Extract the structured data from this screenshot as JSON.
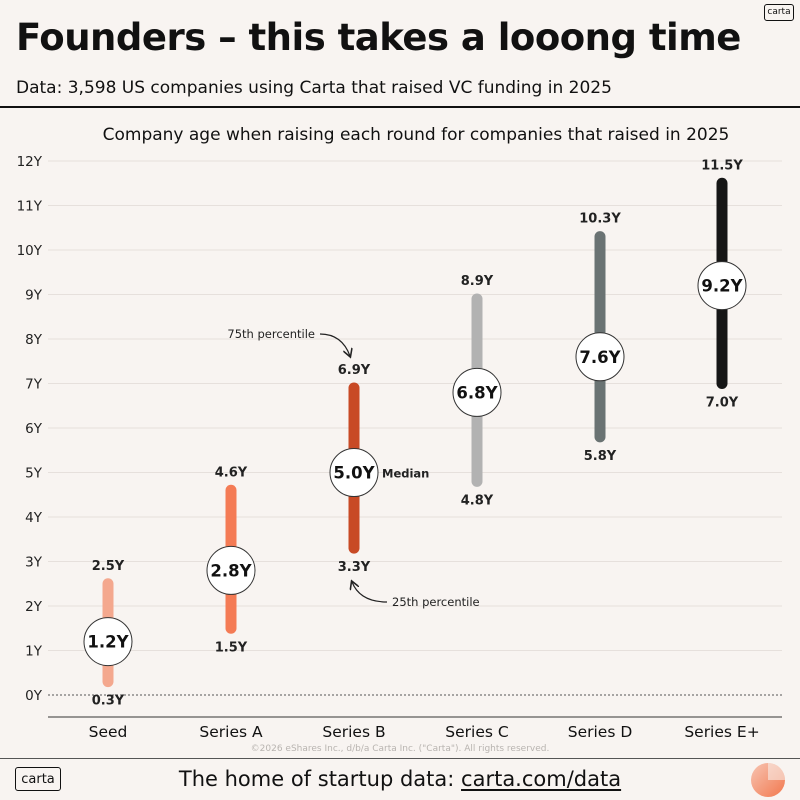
{
  "header": {
    "logo": "carta",
    "title": "Founders – this takes a looong time",
    "subtitle": "Data: 3,598 US companies using Carta that raised VC funding in 2025"
  },
  "footer": {
    "logo": "carta",
    "text_prefix": "The home of startup data: ",
    "link": "carta.com/data",
    "copyright": "©2026 eShares Inc., d/b/a Carta Inc. (\"Carta\"). All rights reserved."
  },
  "colors": {
    "Seed": "#f4a88e",
    "Series A": "#f47b55",
    "Series B": "#c84a25",
    "Series C": "#b2b2b2",
    "Series D": "#6a7373",
    "Series E+": "#161616",
    "background": "#f8f4f1"
  },
  "chart_data": {
    "type": "range",
    "title": "Company age when raising each round for companies that raised in 2025",
    "ylim": [
      0,
      12
    ],
    "yticks": [
      "0Y",
      "1Y",
      "2Y",
      "3Y",
      "4Y",
      "5Y",
      "6Y",
      "7Y",
      "8Y",
      "9Y",
      "10Y",
      "11Y",
      "12Y"
    ],
    "grid": true,
    "categories": [
      "Seed",
      "Series A",
      "Series B",
      "Series C",
      "Series D",
      "Series E+"
    ],
    "p25": [
      0.3,
      1.5,
      3.3,
      4.8,
      5.8,
      7.0
    ],
    "median": [
      1.2,
      2.8,
      5.0,
      6.8,
      7.6,
      9.2
    ],
    "p75": [
      2.5,
      4.6,
      6.9,
      8.9,
      10.3,
      11.5
    ],
    "p25_labels": [
      "0.3Y",
      "1.5Y",
      "3.3Y",
      "4.8Y",
      "5.8Y",
      "7.0Y"
    ],
    "median_labels": [
      "1.2Y",
      "2.8Y",
      "5.0Y",
      "6.8Y",
      "7.6Y",
      "9.2Y"
    ],
    "p75_labels": [
      "2.5Y",
      "4.6Y",
      "6.9Y",
      "8.9Y",
      "10.3Y",
      "11.5Y"
    ],
    "annotations": {
      "p75": "75th percentile",
      "median": "Median",
      "p25": "25th percentile"
    }
  }
}
